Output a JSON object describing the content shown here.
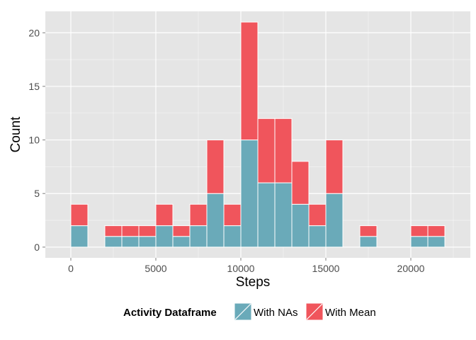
{
  "chart_data": {
    "type": "bar",
    "stacked": true,
    "xlabel": "Steps",
    "ylabel": "Count",
    "xlim": [
      -1500,
      23500
    ],
    "ylim": [
      -1,
      22
    ],
    "x_ticks": [
      0,
      5000,
      10000,
      15000,
      20000
    ],
    "y_ticks": [
      0,
      5,
      10,
      15,
      20
    ],
    "bin_width": 1000,
    "grid": true,
    "legend": {
      "title": "Activity Dataframe",
      "placement": "bottom",
      "entries": [
        "With NAs",
        "With Mean"
      ]
    },
    "colors": {
      "panel": "#e5e5e5",
      "grid": "#ffffff",
      "bar_stroke": "#ffffff",
      "series": [
        "#6aaab9",
        "#f0555c"
      ]
    },
    "bins": [
      {
        "start": -1000,
        "values": [
          0,
          0
        ]
      },
      {
        "start": 0,
        "values": [
          2,
          2
        ]
      },
      {
        "start": 1000,
        "values": [
          0,
          0
        ]
      },
      {
        "start": 2000,
        "values": [
          1,
          1
        ]
      },
      {
        "start": 3000,
        "values": [
          1,
          1
        ]
      },
      {
        "start": 4000,
        "values": [
          1,
          1
        ]
      },
      {
        "start": 5000,
        "values": [
          2,
          2
        ]
      },
      {
        "start": 6000,
        "values": [
          1,
          1
        ]
      },
      {
        "start": 7000,
        "values": [
          2,
          2
        ]
      },
      {
        "start": 8000,
        "values": [
          5,
          5
        ]
      },
      {
        "start": 9000,
        "values": [
          2,
          2
        ]
      },
      {
        "start": 10000,
        "values": [
          10,
          11
        ]
      },
      {
        "start": 11000,
        "values": [
          6,
          6
        ]
      },
      {
        "start": 12000,
        "values": [
          6,
          6
        ]
      },
      {
        "start": 13000,
        "values": [
          4,
          4
        ]
      },
      {
        "start": 14000,
        "values": [
          2,
          2
        ]
      },
      {
        "start": 15000,
        "values": [
          5,
          5
        ]
      },
      {
        "start": 16000,
        "values": [
          0,
          0
        ]
      },
      {
        "start": 17000,
        "values": [
          1,
          1
        ]
      },
      {
        "start": 18000,
        "values": [
          0,
          0
        ]
      },
      {
        "start": 19000,
        "values": [
          0,
          0
        ]
      },
      {
        "start": 20000,
        "values": [
          1,
          1
        ]
      },
      {
        "start": 21000,
        "values": [
          1,
          1
        ]
      },
      {
        "start": 22000,
        "values": [
          0,
          0
        ]
      }
    ]
  }
}
